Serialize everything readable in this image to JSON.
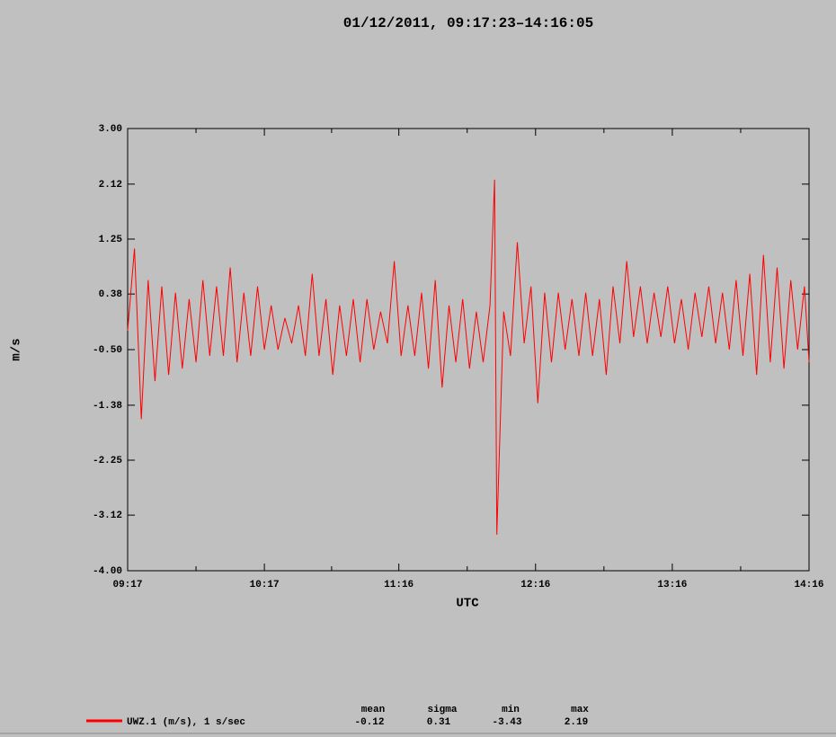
{
  "chart_data": {
    "type": "line",
    "title": "01/12/2011, 09:17:23–14:16:05",
    "x_label": "UTC",
    "y_label": "m/s",
    "xlim": [
      "09:17",
      "14:16"
    ],
    "xticks": [
      "09:17",
      "10:17",
      "11:16",
      "12:16",
      "13:16",
      "14:16"
    ],
    "ylim": [
      -4,
      3
    ],
    "yticks": [
      {
        "value": 3,
        "label": "3.00"
      },
      {
        "value": 2.12,
        "label": "2.12"
      },
      {
        "value": 1.25,
        "label": "1.25"
      },
      {
        "value": 0.38,
        "label": "0.38"
      },
      {
        "value": -0.5,
        "label": "-0.50"
      },
      {
        "value": -1.38,
        "label": "-1.38"
      },
      {
        "value": -2.25,
        "label": "-2.25"
      },
      {
        "value": -3.12,
        "label": "-3.12"
      },
      {
        "value": -4,
        "label": "-4.00"
      }
    ],
    "x": [
      "09:17",
      "09:20",
      "09:23",
      "09:26",
      "09:29",
      "09:32",
      "09:35",
      "09:38",
      "09:41",
      "09:44",
      "09:47",
      "09:50",
      "09:53",
      "09:56",
      "09:59",
      "10:02",
      "10:05",
      "10:08",
      "10:11",
      "10:14",
      "10:17",
      "10:20",
      "10:23",
      "10:26",
      "10:29",
      "10:32",
      "10:35",
      "10:38",
      "10:41",
      "10:44",
      "10:47",
      "10:50",
      "10:53",
      "10:56",
      "10:59",
      "11:02",
      "11:05",
      "11:08",
      "11:11",
      "11:14",
      "11:17",
      "11:20",
      "11:23",
      "11:26",
      "11:29",
      "11:32",
      "11:35",
      "11:38",
      "11:41",
      "11:44",
      "11:47",
      "11:50",
      "11:53",
      "11:56",
      "11:58",
      "11:59",
      "12:02",
      "12:05",
      "12:08",
      "12:11",
      "12:14",
      "12:17",
      "12:20",
      "12:23",
      "12:26",
      "12:29",
      "12:32",
      "12:35",
      "12:38",
      "12:41",
      "12:44",
      "12:47",
      "12:50",
      "12:53",
      "12:56",
      "12:59",
      "13:02",
      "13:05",
      "13:08",
      "13:11",
      "13:14",
      "13:17",
      "13:20",
      "13:23",
      "13:26",
      "13:29",
      "13:32",
      "13:35",
      "13:38",
      "13:41",
      "13:44",
      "13:47",
      "13:50",
      "13:53",
      "13:56",
      "13:59",
      "14:02",
      "14:05",
      "14:08",
      "14:11",
      "14:14",
      "14:16"
    ],
    "series": [
      {
        "name": "UWZ.1 (m/s), 1 s/sec",
        "color": "#ff0000",
        "values": [
          -0.2,
          1.1,
          -1.6,
          0.6,
          -1.0,
          0.5,
          -0.9,
          0.4,
          -0.8,
          0.3,
          -0.7,
          0.6,
          -0.6,
          0.5,
          -0.6,
          0.8,
          -0.7,
          0.4,
          -0.6,
          0.5,
          -0.5,
          0.2,
          -0.5,
          0.0,
          -0.4,
          0.2,
          -0.6,
          0.7,
          -0.6,
          0.3,
          -0.9,
          0.2,
          -0.6,
          0.3,
          -0.7,
          0.3,
          -0.5,
          0.1,
          -0.4,
          0.9,
          -0.6,
          0.2,
          -0.6,
          0.4,
          -0.8,
          0.6,
          -1.1,
          0.2,
          -0.7,
          0.3,
          -0.8,
          0.1,
          -0.7,
          0.2,
          2.19,
          -3.43,
          0.1,
          -0.6,
          1.2,
          -0.4,
          0.5,
          -1.35,
          0.4,
          -0.7,
          0.4,
          -0.5,
          0.3,
          -0.6,
          0.4,
          -0.6,
          0.3,
          -0.9,
          0.5,
          -0.4,
          0.9,
          -0.3,
          0.5,
          -0.4,
          0.4,
          -0.3,
          0.5,
          -0.4,
          0.3,
          -0.5,
          0.4,
          -0.3,
          0.5,
          -0.4,
          0.4,
          -0.5,
          0.6,
          -0.6,
          0.7,
          -0.9,
          1.0,
          -0.7,
          0.8,
          -0.8,
          0.6,
          -0.5,
          0.5,
          -0.7
        ]
      }
    ],
    "stats": {
      "headers": [
        "mean",
        "sigma",
        "min",
        "max"
      ],
      "values": [
        "-0.12",
        "0.31",
        "-3.43",
        "2.19"
      ]
    }
  }
}
